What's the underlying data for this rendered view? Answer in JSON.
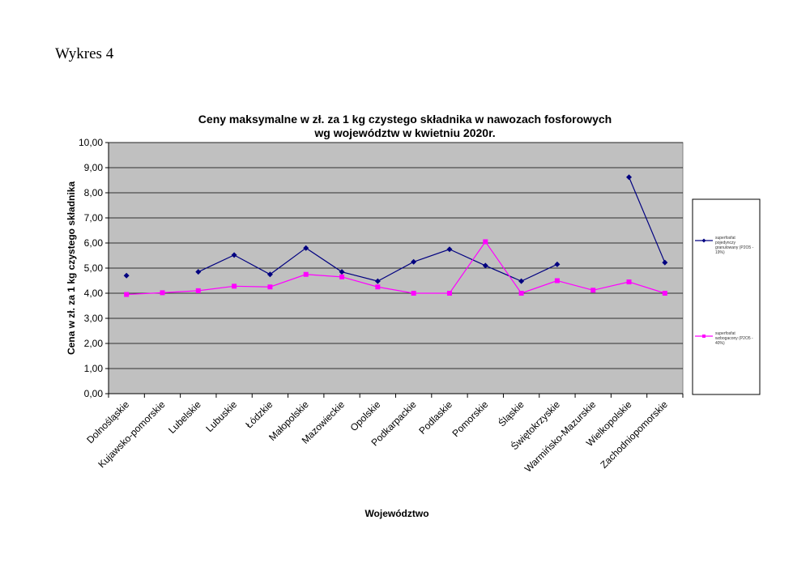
{
  "caption": "Wykres 4",
  "chart_data": {
    "type": "line",
    "title": [
      "Ceny maksymalne  w zł. za 1 kg czystego składnika w nawozach fosforowych",
      "wg województw w kwietniu 2020r."
    ],
    "xlabel": "Województwo",
    "ylabel": "Cena w zł. za 1 kg czystego składnika",
    "ylim": [
      0,
      10
    ],
    "yticks": [
      "0,00",
      "1,00",
      "2,00",
      "3,00",
      "4,00",
      "5,00",
      "6,00",
      "7,00",
      "8,00",
      "9,00",
      "10,00"
    ],
    "grid": true,
    "legend_position": "right",
    "categories": [
      "Dolnośląskie",
      "Kujawsko-pomorskie",
      "Lubelskie",
      "Lubuskie",
      "Łódzkie",
      "Małopolskie",
      "Mazowieckie",
      "Opolskie",
      "Podkarpackie",
      "Podlaskie",
      "Pomorskie",
      "Śląskie",
      "Świętokrzyskie",
      "Warmińsko-Mazurskie",
      "Wielkopolskie",
      "Zachodniopomorskie"
    ],
    "series": [
      {
        "name": [
          "superfosfat",
          "pojedynczy",
          "granulowany  (P2O5 -",
          "19%)"
        ],
        "color": "#000080",
        "marker": "diamond",
        "values": [
          4.7,
          null,
          4.85,
          5.52,
          4.75,
          5.8,
          4.85,
          4.48,
          5.25,
          5.75,
          5.1,
          4.48,
          5.15,
          null,
          8.62,
          5.22
        ]
      },
      {
        "name": [
          "superfosfat",
          "wzbogacony  (P2O5 -",
          "40%)"
        ],
        "color": "#ff00ff",
        "marker": "square",
        "values": [
          3.95,
          4.02,
          4.1,
          4.28,
          4.25,
          4.75,
          4.65,
          4.25,
          4.0,
          4.0,
          6.05,
          4.0,
          4.5,
          4.12,
          4.45,
          4.0
        ]
      }
    ]
  }
}
